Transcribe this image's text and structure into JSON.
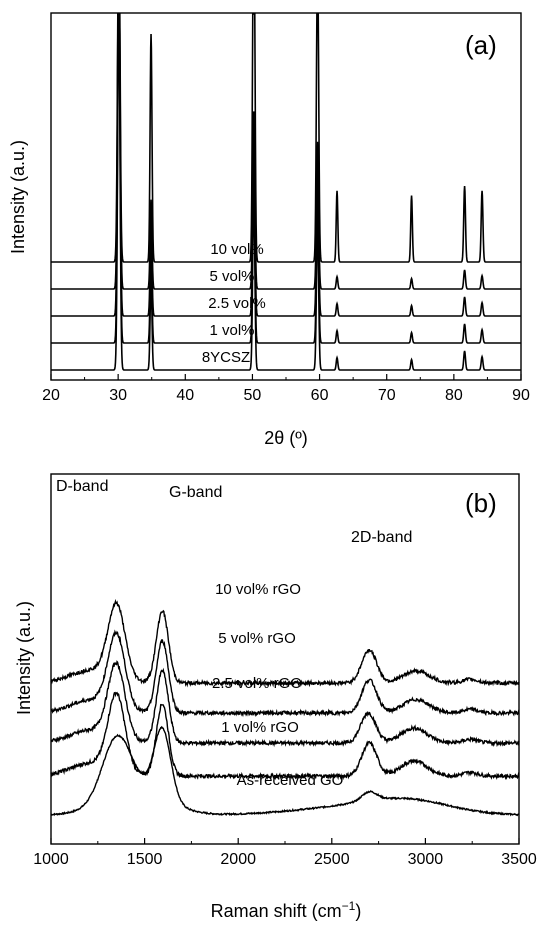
{
  "chart_data": [
    {
      "type": "line",
      "panel": "(a)",
      "xlabel": "2θ (º)",
      "ylabel": "Intensity (a.u.)",
      "xlim": [
        20,
        90
      ],
      "xticks": [
        20,
        30,
        40,
        50,
        60,
        70,
        80,
        90
      ],
      "y_ticks_visible": false,
      "peaks_2theta": [
        30.1,
        34.9,
        50.2,
        59.7,
        62.6,
        73.7,
        81.6,
        84.2
      ],
      "series": [
        {
          "name": "8YCSZ",
          "offset": 0,
          "peak_heights": [
            3.8,
            0.94,
            1.87,
            1.55,
            0.13,
            0.11,
            0.2,
            0.14
          ]
        },
        {
          "name": "1 vol%",
          "offset": 1,
          "peak_heights": [
            3.8,
            0.94,
            1.87,
            1.55,
            0.13,
            0.11,
            0.2,
            0.14
          ]
        },
        {
          "name": "2.5 vol%",
          "offset": 2,
          "peak_heights": [
            3.8,
            0.94,
            1.87,
            1.55,
            0.13,
            0.11,
            0.2,
            0.14
          ]
        },
        {
          "name": "5 vol%",
          "offset": 3,
          "peak_heights": [
            3.8,
            0.94,
            1.87,
            1.55,
            0.13,
            0.11,
            0.2,
            0.14
          ]
        },
        {
          "name": "10 vol%",
          "offset": 4,
          "peak_heights": [
            3.8,
            2.4,
            4.3,
            3.3,
            0.75,
            0.7,
            0.8,
            0.75
          ]
        }
      ]
    },
    {
      "type": "line",
      "panel": "(b)",
      "xlabel": "Raman shift (cm−1)",
      "ylabel": "Intensity (a.u.)",
      "xlim": [
        1000,
        3500
      ],
      "xticks": [
        1000,
        1500,
        2000,
        2500,
        3000,
        3500
      ],
      "y_ticks_visible": false,
      "annotations": [
        "D-band",
        "G-band",
        "2D-band"
      ],
      "series": [
        {
          "name": "As-received GO",
          "baseline": 0.0,
          "d_band": [
            1350,
            1.9
          ],
          "g_band": [
            1595,
            2.3
          ],
          "d2_band": [
            2700,
            0.3
          ],
          "bump": [
            2920,
            0.4
          ],
          "rising_edge": true
        },
        {
          "name": "1 vol% rGO",
          "baseline": 1.3,
          "d_band": [
            1350,
            2.5
          ],
          "g_band": [
            1595,
            2.4
          ],
          "d2_band": [
            2700,
            1.1
          ],
          "bump": [
            2940,
            0.5
          ]
        },
        {
          "name": "2.5 vol% rGO",
          "baseline": 2.4,
          "d_band": [
            1350,
            2.4
          ],
          "g_band": [
            1595,
            2.4
          ],
          "d2_band": [
            2695,
            1.0
          ],
          "bump": [
            2940,
            0.5
          ]
        },
        {
          "name": "5 vol% rGO",
          "baseline": 3.4,
          "d_band": [
            1350,
            2.4
          ],
          "g_band": [
            1595,
            2.4
          ],
          "d2_band": [
            2700,
            1.1
          ],
          "bump": [
            2950,
            0.45
          ]
        },
        {
          "name": "10 vol% rGO",
          "baseline": 4.4,
          "d_band": [
            1350,
            2.4
          ],
          "g_band": [
            1595,
            2.4
          ],
          "d2_band": [
            2700,
            1.1
          ],
          "bump": [
            2950,
            0.4
          ]
        }
      ]
    }
  ]
}
